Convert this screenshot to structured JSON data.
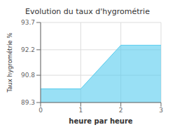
{
  "chart_data": {
    "type": "area",
    "title": "Evolution du taux d'hygrométrie",
    "xlabel": "heure par heure",
    "ylabel": "Taux hygrométrie %",
    "x": [
      0,
      1,
      2,
      3
    ],
    "series": [
      {
        "values": [
          90.05,
          90.05,
          92.45,
          92.45
        ],
        "color": "#55ccee"
      }
    ],
    "xlim": [
      0,
      3
    ],
    "xticks": [
      0,
      1,
      2,
      3
    ],
    "ylim": [
      89.3,
      93.7
    ],
    "yticks": [
      89.3,
      90.8,
      92.2,
      93.7
    ],
    "grid": true
  }
}
